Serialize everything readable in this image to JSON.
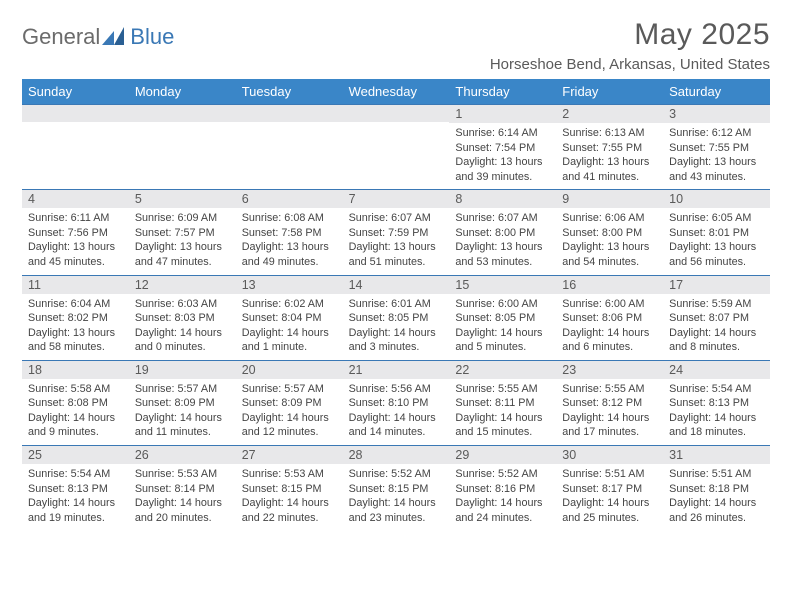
{
  "logo": {
    "general": "General",
    "blue": "Blue"
  },
  "title": "May 2025",
  "location": "Horseshoe Bend, Arkansas, United States",
  "colors": {
    "header_bg": "#3a86c8",
    "header_text": "#ffffff",
    "daynum_bg": "#e8e8ea",
    "daynum_border_top": "#3a78b5",
    "text": "#444444",
    "title_text": "#5a5a5a"
  },
  "day_headers": [
    "Sunday",
    "Monday",
    "Tuesday",
    "Wednesday",
    "Thursday",
    "Friday",
    "Saturday"
  ],
  "weeks": [
    [
      {
        "n": "",
        "sr": "",
        "ss": "",
        "dl": ""
      },
      {
        "n": "",
        "sr": "",
        "ss": "",
        "dl": ""
      },
      {
        "n": "",
        "sr": "",
        "ss": "",
        "dl": ""
      },
      {
        "n": "",
        "sr": "",
        "ss": "",
        "dl": ""
      },
      {
        "n": "1",
        "sr": "Sunrise: 6:14 AM",
        "ss": "Sunset: 7:54 PM",
        "dl": "Daylight: 13 hours and 39 minutes."
      },
      {
        "n": "2",
        "sr": "Sunrise: 6:13 AM",
        "ss": "Sunset: 7:55 PM",
        "dl": "Daylight: 13 hours and 41 minutes."
      },
      {
        "n": "3",
        "sr": "Sunrise: 6:12 AM",
        "ss": "Sunset: 7:55 PM",
        "dl": "Daylight: 13 hours and 43 minutes."
      }
    ],
    [
      {
        "n": "4",
        "sr": "Sunrise: 6:11 AM",
        "ss": "Sunset: 7:56 PM",
        "dl": "Daylight: 13 hours and 45 minutes."
      },
      {
        "n": "5",
        "sr": "Sunrise: 6:09 AM",
        "ss": "Sunset: 7:57 PM",
        "dl": "Daylight: 13 hours and 47 minutes."
      },
      {
        "n": "6",
        "sr": "Sunrise: 6:08 AM",
        "ss": "Sunset: 7:58 PM",
        "dl": "Daylight: 13 hours and 49 minutes."
      },
      {
        "n": "7",
        "sr": "Sunrise: 6:07 AM",
        "ss": "Sunset: 7:59 PM",
        "dl": "Daylight: 13 hours and 51 minutes."
      },
      {
        "n": "8",
        "sr": "Sunrise: 6:07 AM",
        "ss": "Sunset: 8:00 PM",
        "dl": "Daylight: 13 hours and 53 minutes."
      },
      {
        "n": "9",
        "sr": "Sunrise: 6:06 AM",
        "ss": "Sunset: 8:00 PM",
        "dl": "Daylight: 13 hours and 54 minutes."
      },
      {
        "n": "10",
        "sr": "Sunrise: 6:05 AM",
        "ss": "Sunset: 8:01 PM",
        "dl": "Daylight: 13 hours and 56 minutes."
      }
    ],
    [
      {
        "n": "11",
        "sr": "Sunrise: 6:04 AM",
        "ss": "Sunset: 8:02 PM",
        "dl": "Daylight: 13 hours and 58 minutes."
      },
      {
        "n": "12",
        "sr": "Sunrise: 6:03 AM",
        "ss": "Sunset: 8:03 PM",
        "dl": "Daylight: 14 hours and 0 minutes."
      },
      {
        "n": "13",
        "sr": "Sunrise: 6:02 AM",
        "ss": "Sunset: 8:04 PM",
        "dl": "Daylight: 14 hours and 1 minute."
      },
      {
        "n": "14",
        "sr": "Sunrise: 6:01 AM",
        "ss": "Sunset: 8:05 PM",
        "dl": "Daylight: 14 hours and 3 minutes."
      },
      {
        "n": "15",
        "sr": "Sunrise: 6:00 AM",
        "ss": "Sunset: 8:05 PM",
        "dl": "Daylight: 14 hours and 5 minutes."
      },
      {
        "n": "16",
        "sr": "Sunrise: 6:00 AM",
        "ss": "Sunset: 8:06 PM",
        "dl": "Daylight: 14 hours and 6 minutes."
      },
      {
        "n": "17",
        "sr": "Sunrise: 5:59 AM",
        "ss": "Sunset: 8:07 PM",
        "dl": "Daylight: 14 hours and 8 minutes."
      }
    ],
    [
      {
        "n": "18",
        "sr": "Sunrise: 5:58 AM",
        "ss": "Sunset: 8:08 PM",
        "dl": "Daylight: 14 hours and 9 minutes."
      },
      {
        "n": "19",
        "sr": "Sunrise: 5:57 AM",
        "ss": "Sunset: 8:09 PM",
        "dl": "Daylight: 14 hours and 11 minutes."
      },
      {
        "n": "20",
        "sr": "Sunrise: 5:57 AM",
        "ss": "Sunset: 8:09 PM",
        "dl": "Daylight: 14 hours and 12 minutes."
      },
      {
        "n": "21",
        "sr": "Sunrise: 5:56 AM",
        "ss": "Sunset: 8:10 PM",
        "dl": "Daylight: 14 hours and 14 minutes."
      },
      {
        "n": "22",
        "sr": "Sunrise: 5:55 AM",
        "ss": "Sunset: 8:11 PM",
        "dl": "Daylight: 14 hours and 15 minutes."
      },
      {
        "n": "23",
        "sr": "Sunrise: 5:55 AM",
        "ss": "Sunset: 8:12 PM",
        "dl": "Daylight: 14 hours and 17 minutes."
      },
      {
        "n": "24",
        "sr": "Sunrise: 5:54 AM",
        "ss": "Sunset: 8:13 PM",
        "dl": "Daylight: 14 hours and 18 minutes."
      }
    ],
    [
      {
        "n": "25",
        "sr": "Sunrise: 5:54 AM",
        "ss": "Sunset: 8:13 PM",
        "dl": "Daylight: 14 hours and 19 minutes."
      },
      {
        "n": "26",
        "sr": "Sunrise: 5:53 AM",
        "ss": "Sunset: 8:14 PM",
        "dl": "Daylight: 14 hours and 20 minutes."
      },
      {
        "n": "27",
        "sr": "Sunrise: 5:53 AM",
        "ss": "Sunset: 8:15 PM",
        "dl": "Daylight: 14 hours and 22 minutes."
      },
      {
        "n": "28",
        "sr": "Sunrise: 5:52 AM",
        "ss": "Sunset: 8:15 PM",
        "dl": "Daylight: 14 hours and 23 minutes."
      },
      {
        "n": "29",
        "sr": "Sunrise: 5:52 AM",
        "ss": "Sunset: 8:16 PM",
        "dl": "Daylight: 14 hours and 24 minutes."
      },
      {
        "n": "30",
        "sr": "Sunrise: 5:51 AM",
        "ss": "Sunset: 8:17 PM",
        "dl": "Daylight: 14 hours and 25 minutes."
      },
      {
        "n": "31",
        "sr": "Sunrise: 5:51 AM",
        "ss": "Sunset: 8:18 PM",
        "dl": "Daylight: 14 hours and 26 minutes."
      }
    ]
  ]
}
